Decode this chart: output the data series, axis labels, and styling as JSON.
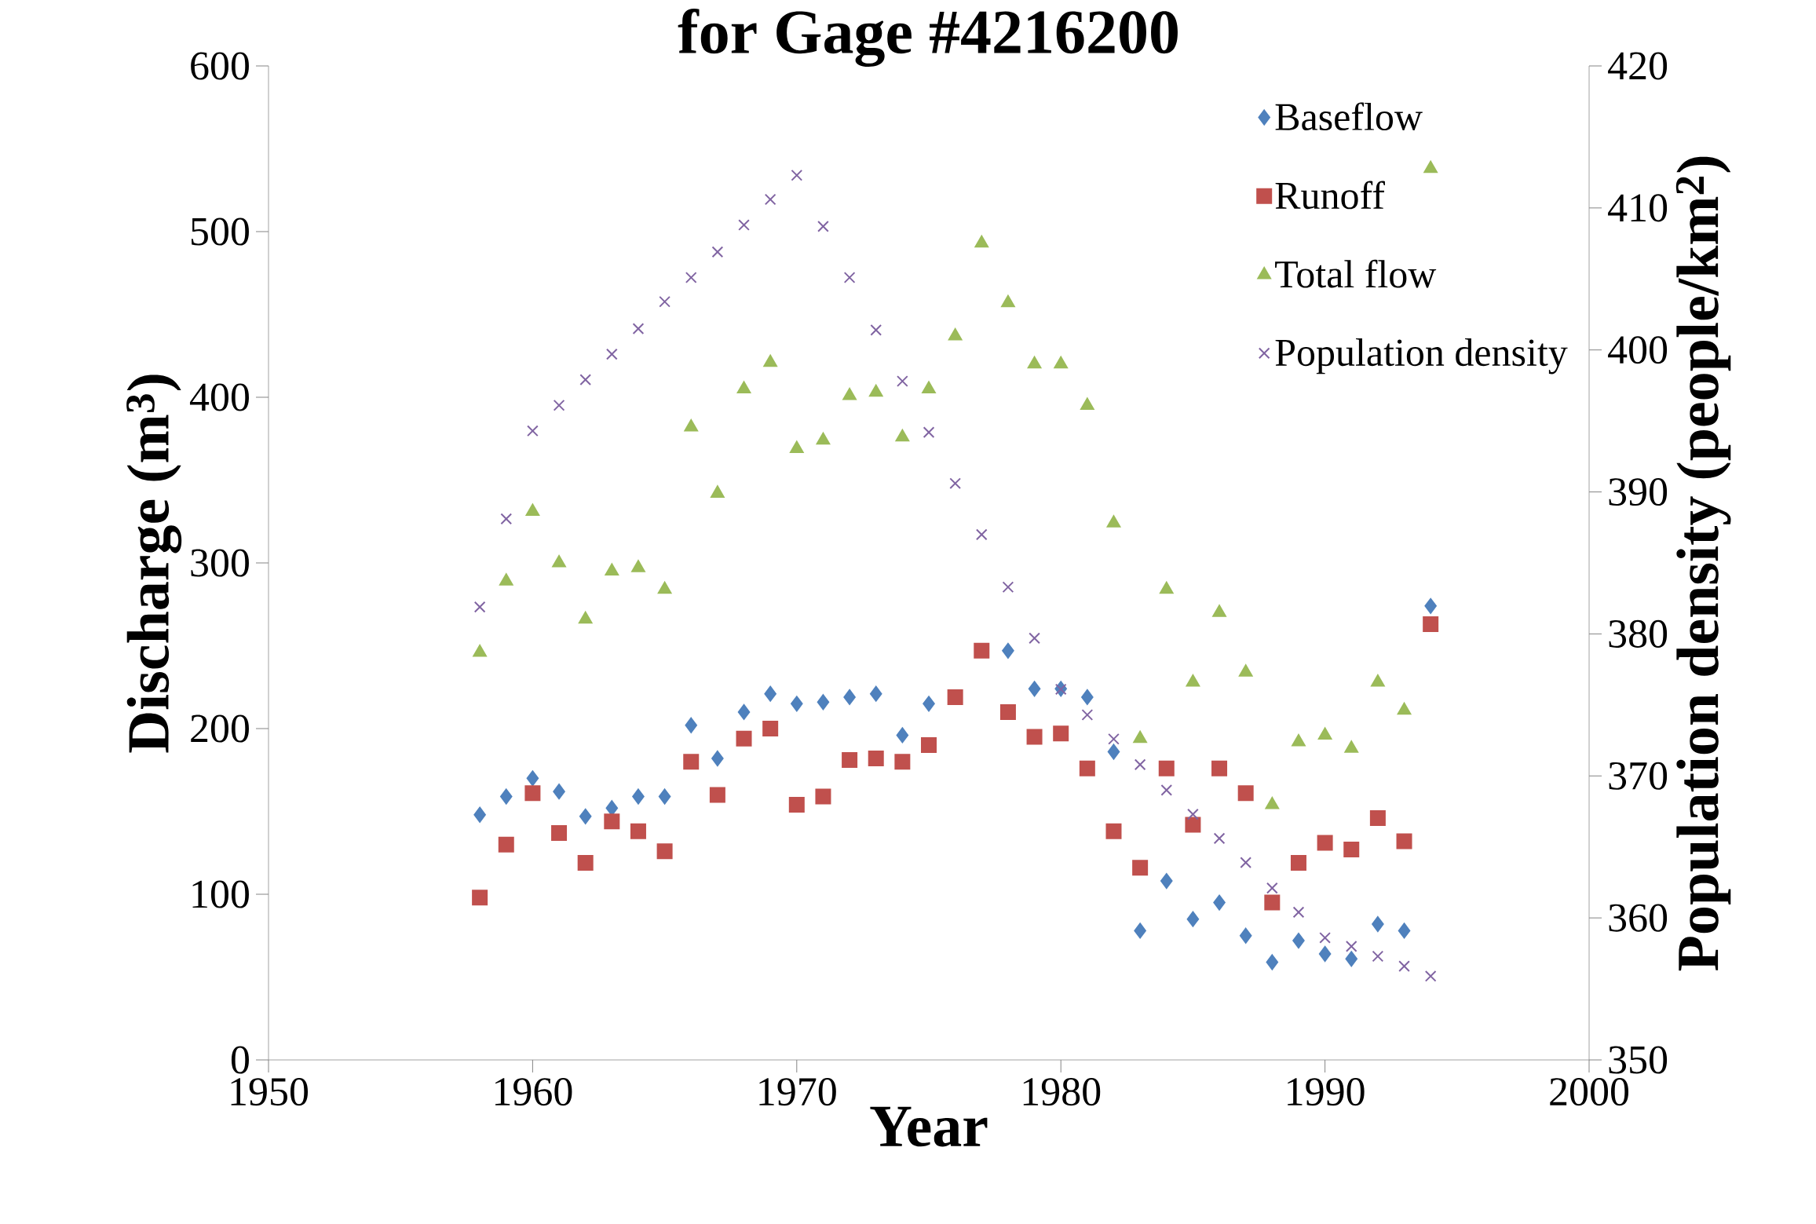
{
  "chart_data": {
    "type": "scatter",
    "title": "for Gage #4216200",
    "xlabel": "Year",
    "ylabel": "Discharge (m$^{3}$)",
    "y2label": "Population density (people/km$^{2}$)",
    "xlim": [
      1950,
      2000
    ],
    "xticks": [
      1950,
      1960,
      1970,
      1980,
      1990,
      2000
    ],
    "ylim": [
      0,
      600
    ],
    "yticks": [
      0,
      100,
      200,
      300,
      400,
      500,
      600
    ],
    "y2lim": [
      350,
      420
    ],
    "y2ticks": [
      350,
      360,
      370,
      380,
      390,
      400,
      410,
      420
    ],
    "grid": false,
    "legend": "top right",
    "x": [
      1958,
      1959,
      1960,
      1961,
      1962,
      1963,
      1964,
      1965,
      1966,
      1967,
      1968,
      1969,
      1970,
      1971,
      1972,
      1973,
      1974,
      1975,
      1976,
      1977,
      1978,
      1979,
      1980,
      1981,
      1982,
      1983,
      1984,
      1985,
      1986,
      1987,
      1988,
      1989,
      1990,
      1991,
      1992,
      1993,
      1994
    ],
    "series": [
      {
        "name": "Baseflow",
        "color": "#4f81bd",
        "marker": "diamond",
        "values": [
          148,
          159,
          170,
          162,
          147,
          152,
          159,
          159,
          202,
          182,
          210,
          221,
          215,
          216,
          219,
          221,
          196,
          215,
          null,
          null,
          247,
          224,
          224,
          219,
          186,
          78,
          108,
          85,
          95,
          75,
          59,
          72,
          64,
          61,
          82,
          78,
          274
        ]
      },
      {
        "name": "Runoff",
        "color": "#c0504d",
        "marker": "square",
        "values": [
          98,
          130,
          161,
          137,
          119,
          144,
          138,
          126,
          180,
          160,
          194,
          200,
          154,
          159,
          181,
          182,
          180,
          190,
          219,
          247,
          210,
          195,
          197,
          176,
          138,
          116,
          176,
          142,
          176,
          161,
          95,
          119,
          131,
          127,
          146,
          132,
          263
        ]
      },
      {
        "name": "Total flow",
        "color": "#9bbb59",
        "marker": "triangle",
        "values": [
          246,
          289,
          331,
          300,
          266,
          295,
          297,
          284,
          382,
          342,
          405,
          421,
          369,
          374,
          401,
          403,
          376,
          405,
          437,
          493,
          457,
          420,
          420,
          395,
          324,
          194,
          284,
          228,
          270,
          234,
          154,
          192,
          196,
          188,
          228,
          211,
          538
        ]
      },
      {
        "name": "Population density",
        "color": "#8064a2",
        "marker": "cross",
        "axis": "y2",
        "values": [
          381.9,
          388.1,
          394.3,
          396.1,
          397.9,
          399.7,
          401.5,
          403.4,
          405.1,
          406.9,
          408.8,
          410.6,
          412.3,
          408.7,
          405.1,
          401.4,
          397.8,
          394.2,
          390.6,
          387.0,
          383.3,
          379.7,
          376.1,
          374.3,
          372.6,
          370.8,
          369.0,
          367.3,
          365.6,
          363.9,
          362.1,
          360.4,
          358.6,
          358.0,
          357.3,
          356.6,
          355.9
        ]
      }
    ]
  }
}
